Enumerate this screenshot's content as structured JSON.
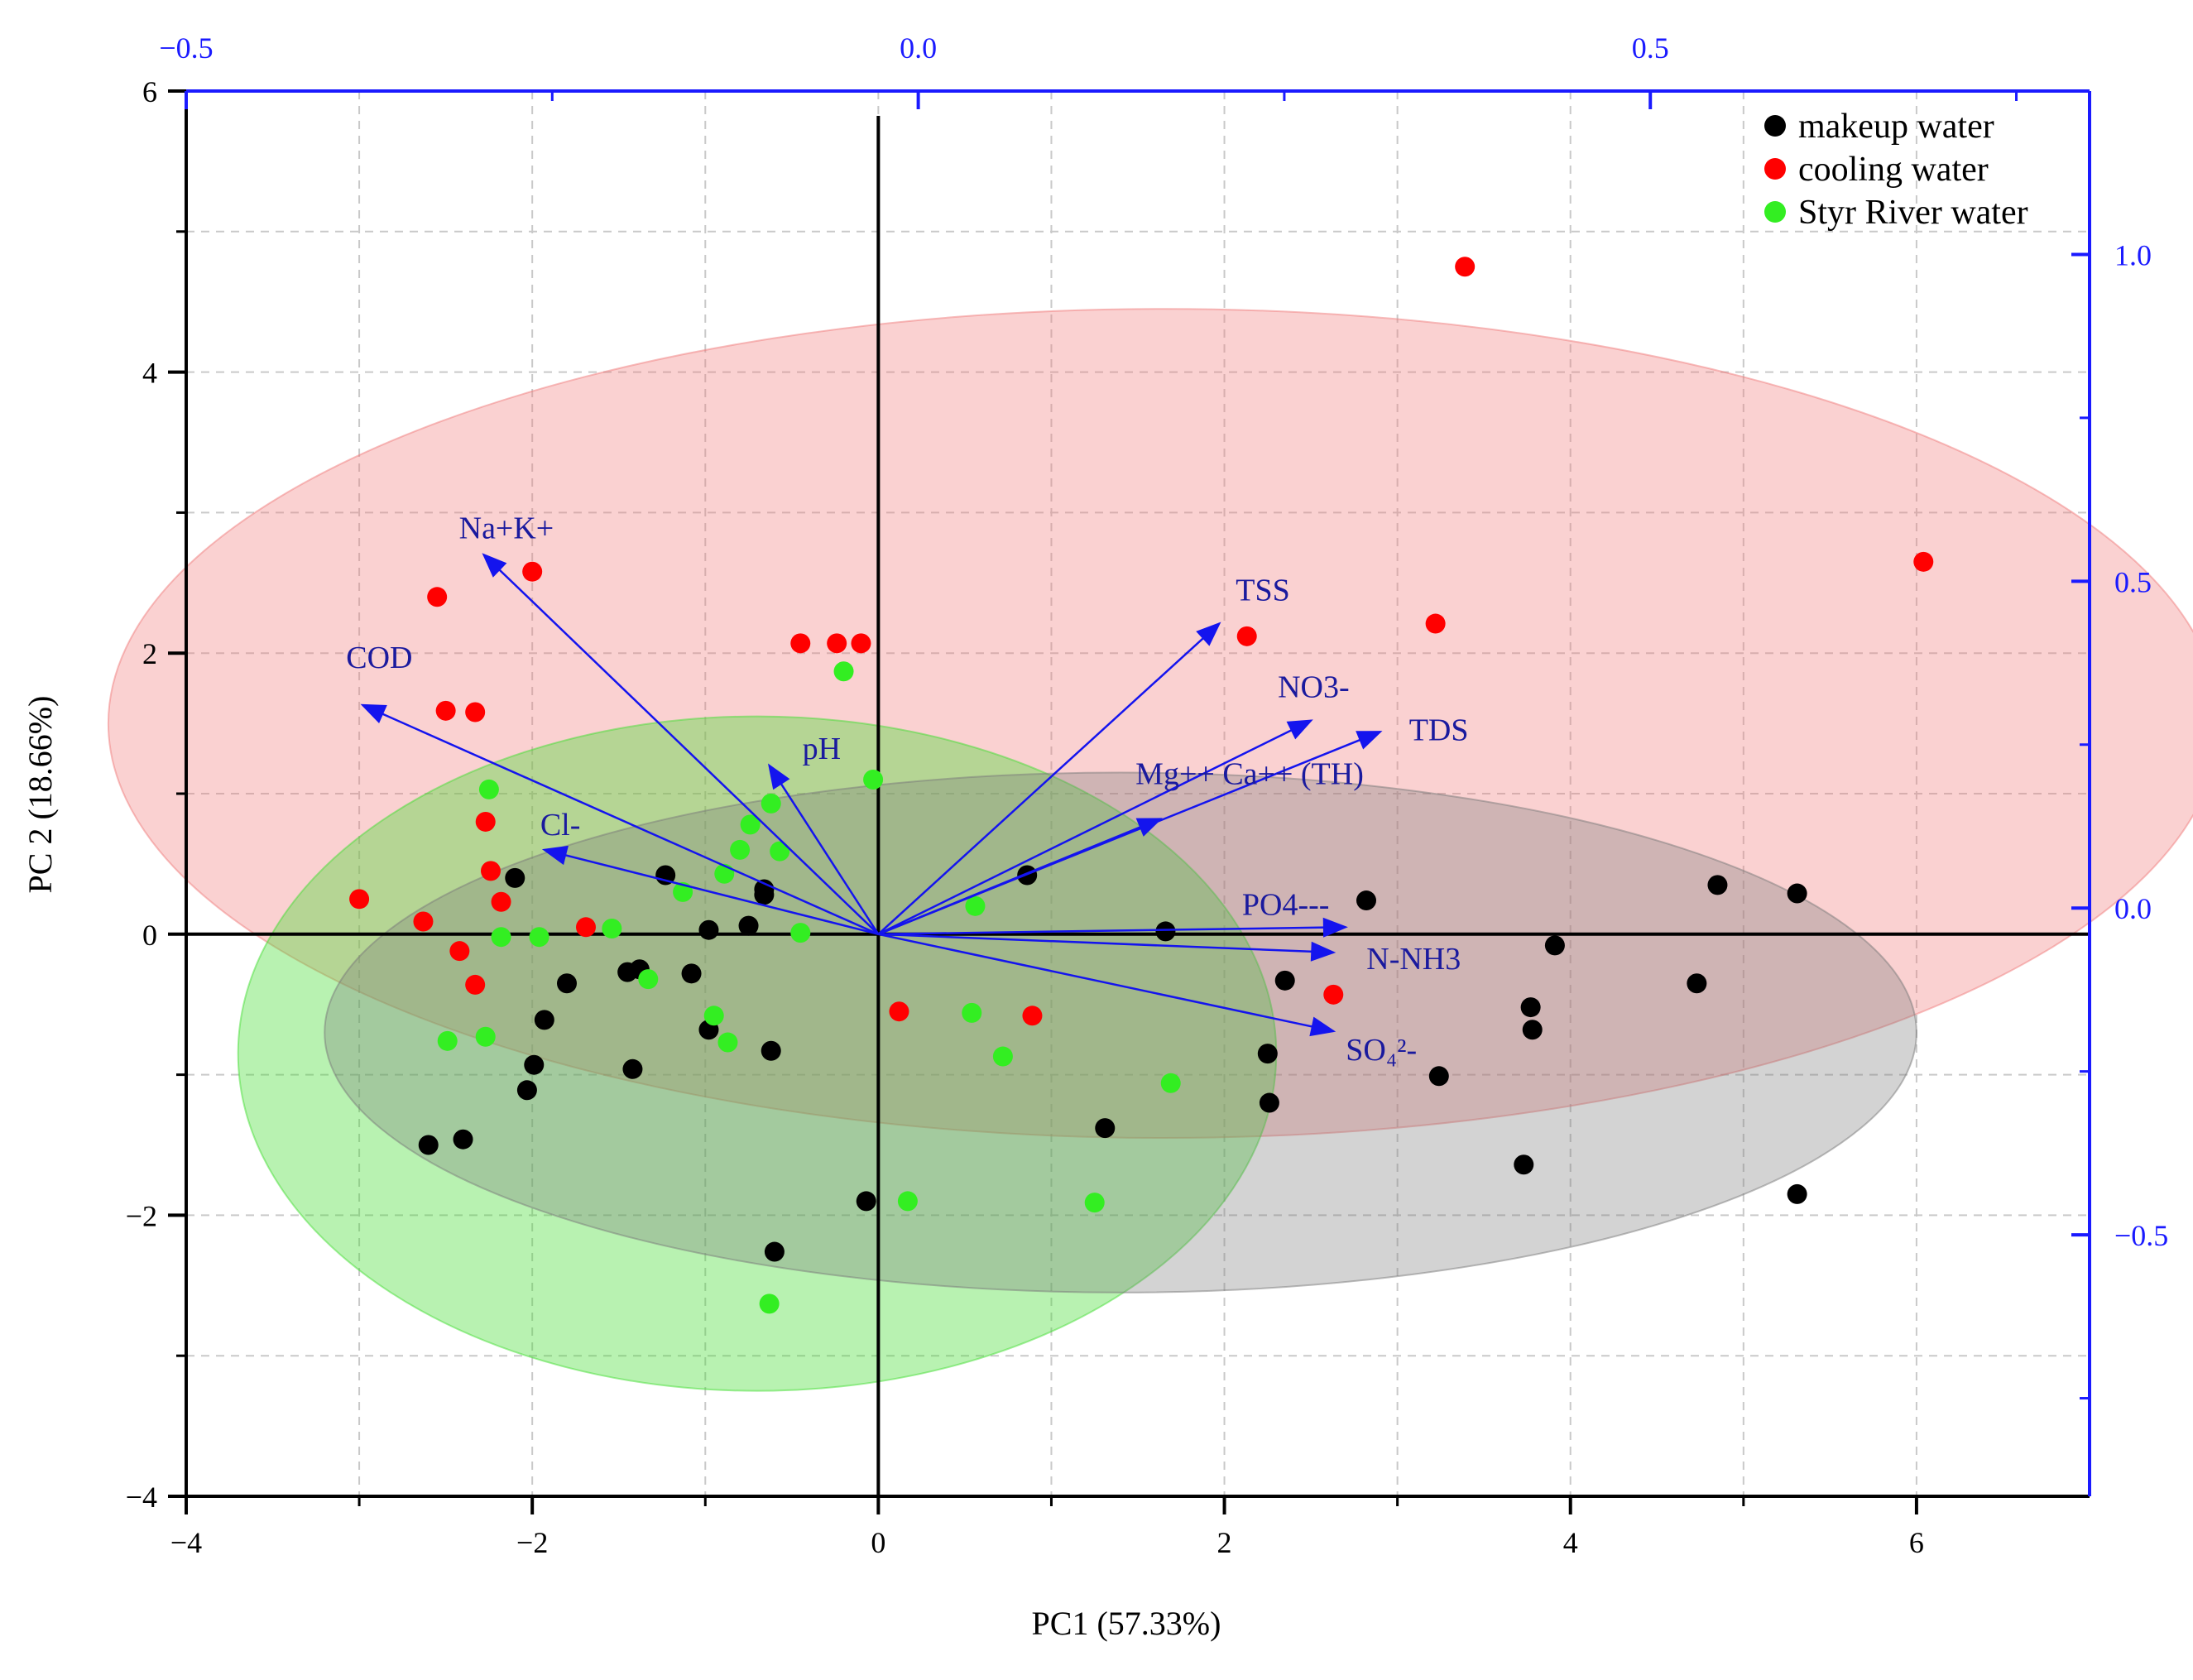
{
  "chart_data": {
    "type": "scatter",
    "title": "",
    "xlabel": "PC1 (57.33%)",
    "ylabel": "PC 2 (18.66%)",
    "xlim": [
      -4,
      7
    ],
    "ylim": [
      -4,
      6
    ],
    "x_ticks": [
      "-4",
      "-2",
      "0",
      "2",
      "4",
      "6"
    ],
    "y_ticks": [
      "-4",
      "-2",
      "0",
      "2",
      "4",
      "6"
    ],
    "secondary_x": {
      "lim": [
        -0.5,
        0.8
      ],
      "ticks": [
        "-0.5",
        "0.0",
        "0.5"
      ],
      "color": "#1a1aff"
    },
    "secondary_y": {
      "lim": [
        -0.9,
        1.25
      ],
      "ticks": [
        "-0.5",
        "0.0",
        "0.5",
        "1.0"
      ],
      "color": "#1a1aff"
    },
    "grid": true,
    "legend_position": "top-right",
    "series": [
      {
        "name": "makeup water",
        "color": "#000000",
        "ellipse": {
          "cx": 1.4,
          "cy": -0.7,
          "rx": 4.6,
          "ry": 1.85,
          "color": "#7a7a7a"
        },
        "points": [
          [
            -2.1,
            0.4
          ],
          [
            -1.8,
            -0.35
          ],
          [
            -1.45,
            -0.27
          ],
          [
            -1.38,
            -0.25
          ],
          [
            -1.23,
            0.42
          ],
          [
            -1.08,
            -0.28
          ],
          [
            -0.98,
            0.03
          ],
          [
            -0.98,
            -0.68
          ],
          [
            -0.75,
            0.06
          ],
          [
            -0.66,
            0.28
          ],
          [
            -0.66,
            0.32
          ],
          [
            -0.62,
            -0.83
          ],
          [
            -1.42,
            -0.96
          ],
          [
            -1.93,
            -0.61
          ],
          [
            -1.99,
            -0.93
          ],
          [
            -2.03,
            -1.11
          ],
          [
            -2.4,
            -1.46
          ],
          [
            -2.6,
            -1.5
          ],
          [
            -0.07,
            -1.9
          ],
          [
            -0.6,
            -2.26
          ],
          [
            0.86,
            0.42
          ],
          [
            1.66,
            0.02
          ],
          [
            1.31,
            -1.38
          ],
          [
            2.25,
            -0.85
          ],
          [
            2.26,
            -1.2
          ],
          [
            2.35,
            -0.33
          ],
          [
            2.82,
            0.24
          ],
          [
            3.24,
            -1.01
          ],
          [
            3.73,
            -1.64
          ],
          [
            3.77,
            -0.52
          ],
          [
            3.78,
            -0.68
          ],
          [
            3.91,
            -0.08
          ],
          [
            4.73,
            -0.35
          ],
          [
            4.85,
            0.35
          ],
          [
            5.31,
            0.29
          ],
          [
            5.31,
            -1.85
          ]
        ]
      },
      {
        "name": "cooling water",
        "color": "#ff0000",
        "ellipse": {
          "cx": 1.65,
          "cy": 1.5,
          "rx": 6.1,
          "ry": 2.95,
          "color": "#f07c7c"
        },
        "points": [
          [
            -2.55,
            2.4
          ],
          [
            -2.0,
            2.58
          ],
          [
            -2.5,
            1.59
          ],
          [
            -2.33,
            1.58
          ],
          [
            -3.0,
            0.25
          ],
          [
            -2.63,
            0.09
          ],
          [
            -2.27,
            0.8
          ],
          [
            -2.24,
            0.45
          ],
          [
            -2.18,
            0.23
          ],
          [
            -2.42,
            -0.12
          ],
          [
            -2.33,
            -0.36
          ],
          [
            -1.69,
            0.05
          ],
          [
            -0.45,
            2.07
          ],
          [
            -0.24,
            2.07
          ],
          [
            -0.1,
            2.07
          ],
          [
            0.12,
            -0.55
          ],
          [
            0.89,
            -0.58
          ],
          [
            2.13,
            2.12
          ],
          [
            2.63,
            -0.43
          ],
          [
            3.22,
            2.21
          ],
          [
            3.39,
            4.75
          ],
          [
            6.04,
            2.65
          ]
        ]
      },
      {
        "name": "Styr River water",
        "color": "#33ee22",
        "ellipse": {
          "cx": -0.7,
          "cy": -0.85,
          "rx": 3.0,
          "ry": 2.4,
          "color": "#44dd33"
        },
        "points": [
          [
            -2.25,
            1.03
          ],
          [
            -2.18,
            -0.02
          ],
          [
            -1.96,
            -0.02
          ],
          [
            -1.54,
            0.04
          ],
          [
            -1.33,
            -0.32
          ],
          [
            -1.13,
            0.3
          ],
          [
            -0.95,
            -0.58
          ],
          [
            -0.89,
            0.43
          ],
          [
            -0.87,
            -0.77
          ],
          [
            -0.8,
            0.6
          ],
          [
            -0.74,
            0.78
          ],
          [
            -0.62,
            0.93
          ],
          [
            -0.57,
            0.59
          ],
          [
            -0.45,
            0.01
          ],
          [
            -0.2,
            1.87
          ],
          [
            -0.03,
            1.1
          ],
          [
            -2.27,
            -0.73
          ],
          [
            -2.49,
            -0.76
          ],
          [
            0.54,
            -0.56
          ],
          [
            0.56,
            0.2
          ],
          [
            0.72,
            -0.87
          ],
          [
            0.17,
            -1.9
          ],
          [
            -0.63,
            -2.63
          ],
          [
            1.25,
            -1.91
          ],
          [
            1.69,
            -1.06
          ]
        ]
      }
    ],
    "loadings": [
      {
        "label": "Na+K+",
        "end": [
          -2.28,
          2.7
        ]
      },
      {
        "label": "COD",
        "end": [
          -2.98,
          1.63
        ]
      },
      {
        "label": "pH",
        "end": [
          -0.63,
          1.2
        ]
      },
      {
        "label": "Cl-",
        "end": [
          -1.93,
          0.6
        ]
      },
      {
        "label": "TSS",
        "end": [
          1.97,
          2.21
        ]
      },
      {
        "label": "NO3-",
        "end": [
          2.5,
          1.52
        ]
      },
      {
        "label": "TDS",
        "end": [
          2.9,
          1.44
        ]
      },
      {
        "label": "Mg++ Ca++ (TH)",
        "end": [
          1.63,
          0.82
        ]
      },
      {
        "label": "PO4---",
        "end": [
          2.7,
          0.05
        ]
      },
      {
        "label": "N-NH3",
        "end": [
          2.63,
          -0.13
        ]
      },
      {
        "label": "SO₄²-",
        "end": [
          2.63,
          -0.69
        ]
      }
    ]
  }
}
